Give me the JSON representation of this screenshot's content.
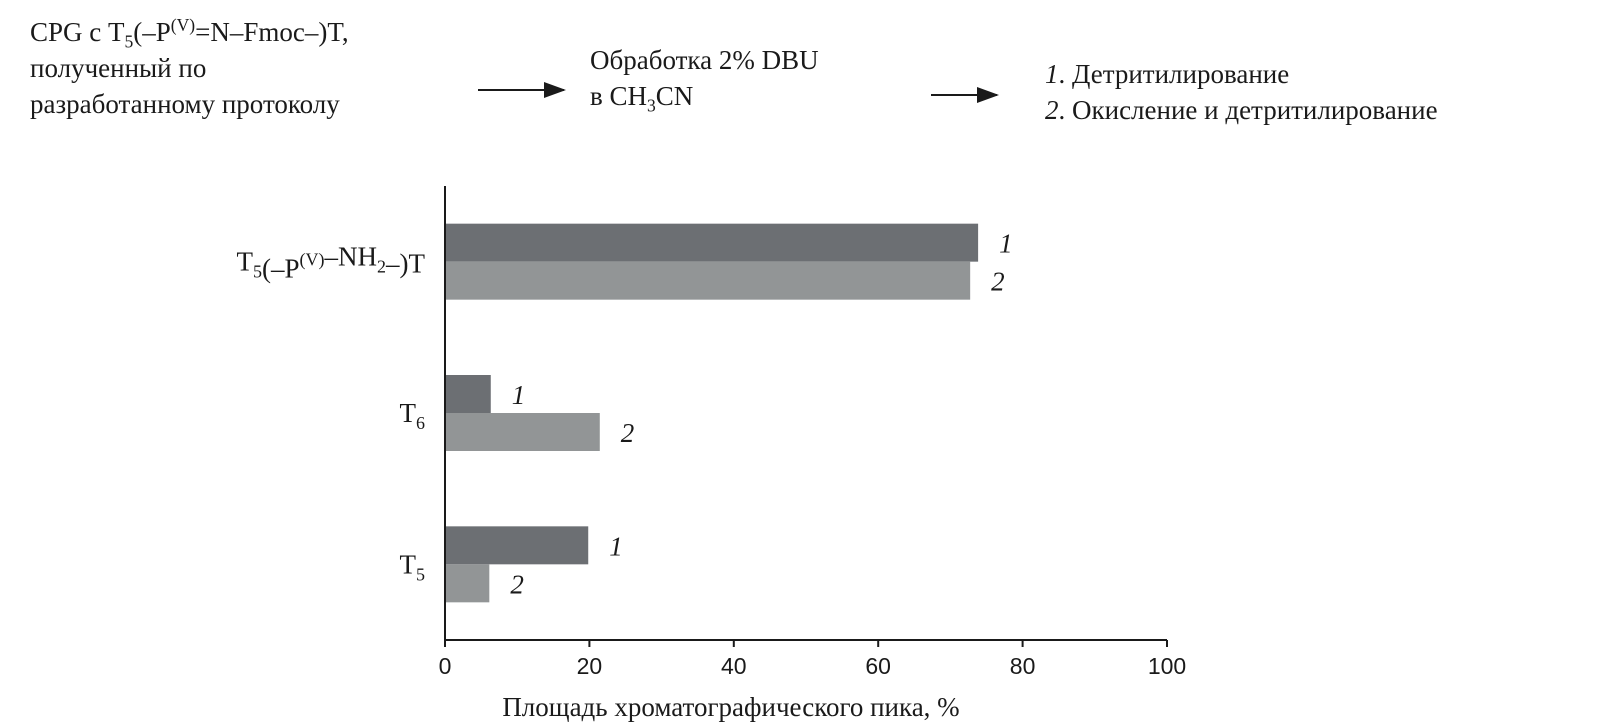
{
  "scheme": {
    "step1": {
      "line1": {
        "a": "CPG  с T",
        "sub": "5",
        "b": "(–P",
        "sup": "(V)",
        "c": "=N–Fmoc–)T,"
      },
      "line2": "полученный по",
      "line3": "разработанному протоколу"
    },
    "step2": {
      "line1": "Обработка 2% DBU",
      "line2": {
        "a": "в CH",
        "sub": "3",
        "b": "CN"
      }
    },
    "step3": {
      "item1": {
        "num": "1",
        "text": ". Детритилирование"
      },
      "item2": {
        "num": "2",
        "text": ". Окисление и детритилирование"
      }
    }
  },
  "chart_data": {
    "type": "bar",
    "orientation": "horizontal",
    "categories": [
      {
        "base": "T",
        "sub": "5",
        "rest": "(–P",
        "sup": "(V)",
        "rest2": "–NH",
        "sub2": "2",
        "rest3": "–)T"
      },
      {
        "base": "T",
        "sub": "6"
      },
      {
        "base": "T",
        "sub": "5"
      }
    ],
    "series": [
      {
        "name": "1",
        "color": "#6c6f73",
        "values": [
          73.7,
          6.2,
          19.7
        ]
      },
      {
        "name": "2",
        "color": "#929596",
        "values": [
          72.6,
          21.3,
          6.0
        ]
      }
    ],
    "xlabel": "Площадь хроматографического пика, %",
    "xlim": [
      0,
      100
    ],
    "xticks": [
      0,
      20,
      40,
      60,
      80,
      100
    ],
    "grid": false
  }
}
